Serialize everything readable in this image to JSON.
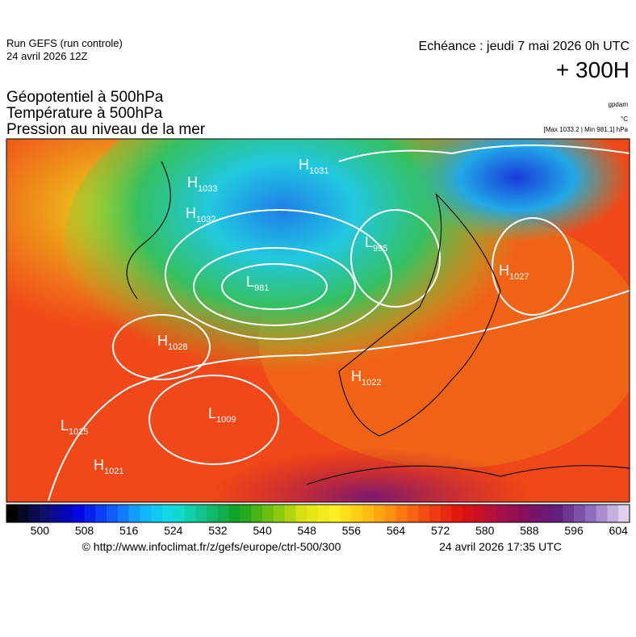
{
  "header": {
    "run": "Run GEFS (run controle)",
    "date": "24 avril 2026 12Z",
    "echeance": "Echéance : jeudi 7 mai 2026 0h UTC",
    "lead": "+ 300H",
    "fields": [
      "Géopotentiel à 500hPa",
      "Température à 500hPa",
      "Pression au niveau de la mer"
    ],
    "units": [
      "gpdam",
      "°C"
    ],
    "minmax": "[Max 1033.2 | Min 981.1] hPa"
  },
  "centers": [
    {
      "type": "H",
      "value": 1031
    },
    {
      "type": "H",
      "value": 1033
    },
    {
      "type": "H",
      "value": 1032
    },
    {
      "type": "L",
      "value": 981
    },
    {
      "type": "L",
      "value": 995
    },
    {
      "type": "H",
      "value": 1027
    },
    {
      "type": "H",
      "value": 1028
    },
    {
      "type": "H",
      "value": 1022
    },
    {
      "type": "L",
      "value": 1009
    },
    {
      "type": "L",
      "value": 1015
    },
    {
      "type": "H",
      "value": 1021
    }
  ],
  "colorbar": {
    "lim": [
      494,
      606
    ],
    "ticks": [
      500,
      508,
      516,
      524,
      532,
      540,
      548,
      556,
      564,
      572,
      580,
      588,
      596,
      604
    ]
  },
  "footer": {
    "url": "© http://www.infoclimat.fr/z/gefs/europe/ctrl-500/300",
    "issued": "24 avril 2026 17:35 UTC"
  }
}
